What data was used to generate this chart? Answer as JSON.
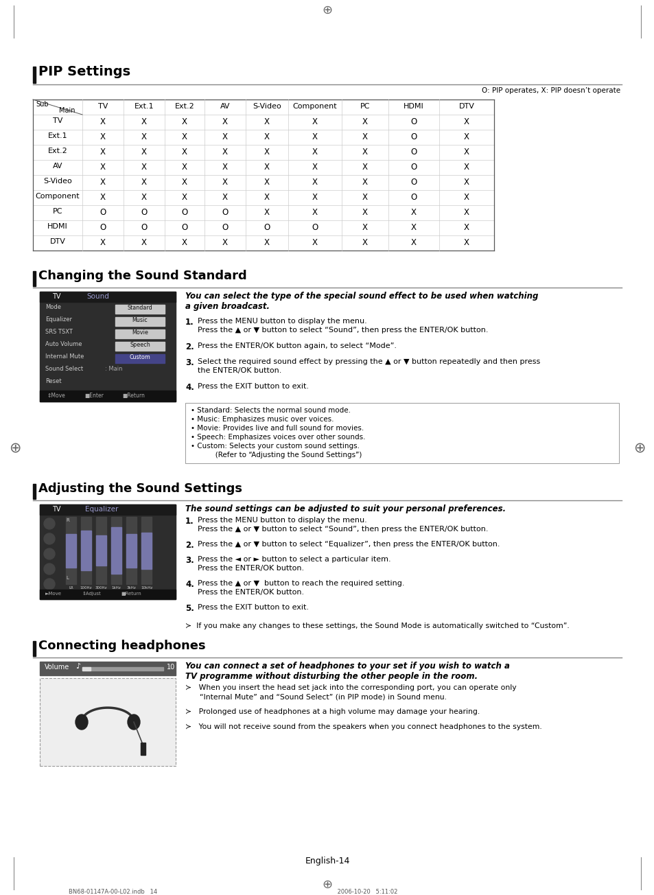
{
  "page_bg": "#ffffff",
  "pip_title": "PIP Settings",
  "pip_note": "O: PIP operates, X: PIP doesn’t operate",
  "table_headers": [
    "TV",
    "Ext.1",
    "Ext.2",
    "AV",
    "S-Video",
    "Component",
    "PC",
    "HDMI",
    "DTV"
  ],
  "table_rows": [
    [
      "TV",
      "X",
      "X",
      "X",
      "X",
      "X",
      "X",
      "X",
      "O",
      "X"
    ],
    [
      "Ext.1",
      "X",
      "X",
      "X",
      "X",
      "X",
      "X",
      "X",
      "O",
      "X"
    ],
    [
      "Ext.2",
      "X",
      "X",
      "X",
      "X",
      "X",
      "X",
      "X",
      "O",
      "X"
    ],
    [
      "AV",
      "X",
      "X",
      "X",
      "X",
      "X",
      "X",
      "X",
      "O",
      "X"
    ],
    [
      "S-Video",
      "X",
      "X",
      "X",
      "X",
      "X",
      "X",
      "X",
      "O",
      "X"
    ],
    [
      "Component",
      "X",
      "X",
      "X",
      "X",
      "X",
      "X",
      "X",
      "O",
      "X"
    ],
    [
      "PC",
      "O",
      "O",
      "O",
      "O",
      "X",
      "X",
      "X",
      "X",
      "X"
    ],
    [
      "HDMI",
      "O",
      "O",
      "O",
      "O",
      "O",
      "O",
      "X",
      "X",
      "X"
    ],
    [
      "DTV",
      "X",
      "X",
      "X",
      "X",
      "X",
      "X",
      "X",
      "X",
      "X"
    ]
  ],
  "sound_title": "Changing the Sound Standard",
  "sound_italic": "You can select the type of the special sound effect to be used when watching\na given broadcast.",
  "sound_steps": [
    [
      "Press the ",
      "MENU",
      " button to display the menu.\nPress the ▲ or ▼ button to select “Sound”, then press the ",
      "ENTER/OK",
      " button."
    ],
    [
      "Press the ",
      "ENTER/OK",
      " button again, to select “Mode”."
    ],
    [
      "Select the required sound effect by pressing the ▲ or ▼ button repeatedly and then press\nthe ",
      "ENTER/OK",
      " button."
    ],
    [
      "Press the ",
      "EXIT",
      " button to exit."
    ]
  ],
  "sound_bullets": [
    [
      "• ",
      "Standard",
      ": Selects the normal sound mode."
    ],
    [
      "• ",
      "Music",
      ": Emphasizes music over voices."
    ],
    [
      "• ",
      "Movie",
      ": Provides live and full sound for movies."
    ],
    [
      "• ",
      "Speech",
      ": Emphasizes voices over other sounds."
    ],
    [
      "• ",
      "Custom",
      ": Selects your custom sound settings."
    ],
    [
      "           (Refer to “Adjusting the Sound Settings”)"
    ]
  ],
  "adjust_title": "Adjusting the Sound Settings",
  "adjust_italic": "The sound settings can be adjusted to suit your personal preferences.",
  "adjust_steps": [
    [
      "Press the ",
      "MENU",
      " button to display the menu.\nPress the ▲ or ▼ button to select “Sound”, then press the ",
      "ENTER/OK",
      " button."
    ],
    [
      "Press the ▲ or ▼ button to select “Equalizer”, then press the ",
      "ENTER/OK",
      " button."
    ],
    [
      "Press the ◄ or ► button to select a particular item.\nPress the ",
      "ENTER/OK",
      " button."
    ],
    [
      "Press the ▲ or ▼  button to reach the required setting.\nPress the ",
      "ENTER/OK",
      " button."
    ],
    [
      "Press the ",
      "EXIT",
      " button to exit."
    ]
  ],
  "adjust_note": "≻  If you make any changes to these settings, the Sound Mode is automatically switched to “Custom”.",
  "connect_title": "Connecting headphones",
  "connect_italic": "You can connect a set of headphones to your set if you wish to watch a\nTV programme without disturbing the other people in the room.",
  "connect_bullets": [
    "≻   When you insert the head set jack into the corresponding port, you can operate only\n      “Internal Mute” and “Sound Select” (in PIP mode) in Sound menu.",
    "≻   Prolonged use of headphones at a high volume may damage your hearing.",
    "≻   You will not receive sound from the speakers when you connect headphones to the system."
  ],
  "footer": "English-14",
  "bottom_info": "BN68-01147A-00-L02.indb   14                                                                                                    2006-10-20   5:11:02"
}
